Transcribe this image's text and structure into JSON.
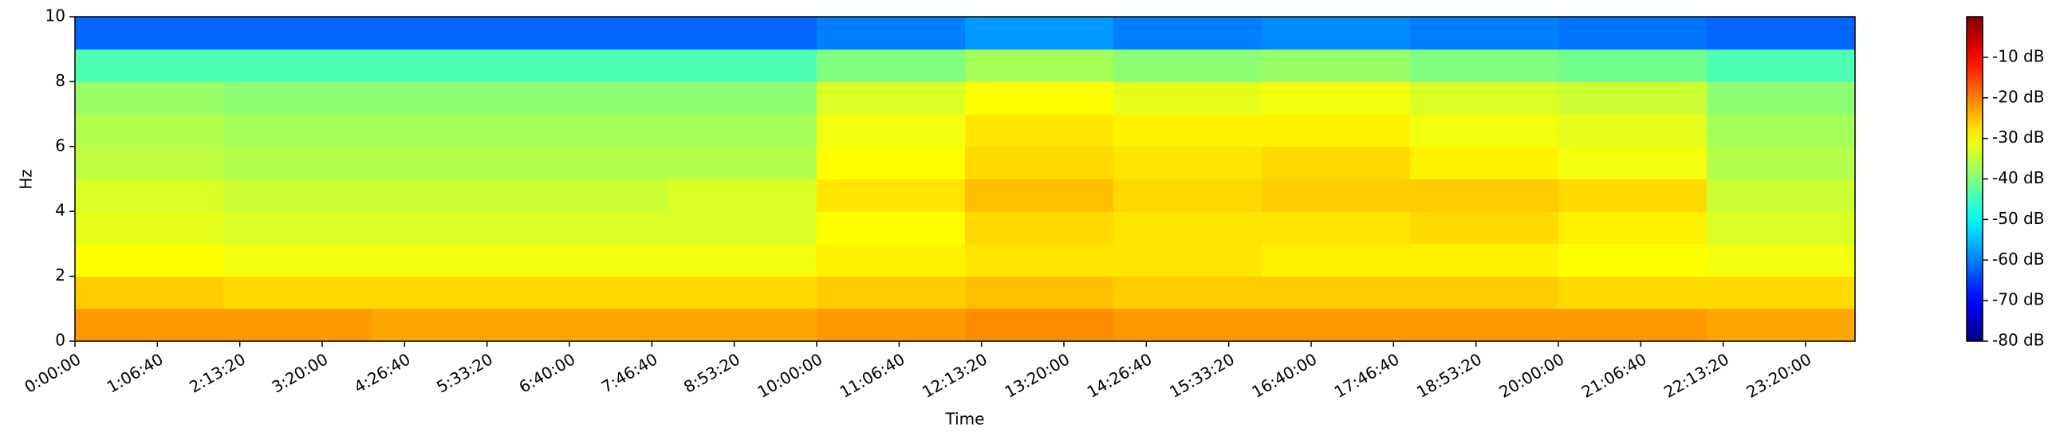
{
  "chart_data": {
    "type": "heatmap",
    "colormap": "jet",
    "xlabel": "Time",
    "ylabel": "Hz",
    "x_bins": [
      0,
      7200,
      14400,
      21600,
      28800,
      36000,
      43200,
      50400,
      57600,
      64800,
      72000,
      79200,
      86400
    ],
    "y_bins": [
      0,
      1,
      2,
      3,
      4,
      5,
      6,
      7,
      8,
      9,
      10
    ],
    "z": [
      [
        -22,
        -22,
        -23,
        -23,
        -23,
        -22,
        -21,
        -22,
        -22,
        -22,
        -22,
        -23
      ],
      [
        -26,
        -27,
        -27,
        -27,
        -27,
        -26,
        -25,
        -26,
        -26,
        -26,
        -27,
        -27
      ],
      [
        -30,
        -31,
        -31,
        -31,
        -31,
        -29,
        -28,
        -28,
        -29,
        -29,
        -30,
        -31
      ],
      [
        -32,
        -33,
        -33,
        -33,
        -33,
        -30,
        -27,
        -28,
        -28,
        -27,
        -29,
        -33
      ],
      [
        -33,
        -34,
        -34,
        -34,
        -33,
        -28,
        -25,
        -27,
        -26,
        -26,
        -27,
        -34
      ],
      [
        -35,
        -36,
        -36,
        -36,
        -36,
        -30,
        -27,
        -28,
        -27,
        -29,
        -31,
        -36
      ],
      [
        -36,
        -37,
        -37,
        -37,
        -37,
        -31,
        -28,
        -29,
        -29,
        -31,
        -32,
        -37
      ],
      [
        -38,
        -39,
        -39,
        -39,
        -39,
        -33,
        -30,
        -32,
        -31,
        -33,
        -34,
        -39
      ],
      [
        -44,
        -44,
        -44,
        -44,
        -44,
        -40,
        -37,
        -39,
        -38,
        -40,
        -41,
        -44
      ],
      [
        -62,
        -62,
        -62,
        -62,
        -62,
        -60,
        -58,
        -60,
        -59,
        -60,
        -61,
        -62
      ]
    ],
    "xlim": [
      0,
      86400
    ],
    "ylim": [
      0,
      10
    ],
    "clim": [
      -80,
      0
    ],
    "xticks": [
      {
        "value": 0,
        "label": "0:00:00"
      },
      {
        "value": 4000,
        "label": "1:06:40"
      },
      {
        "value": 8000,
        "label": "2:13:20"
      },
      {
        "value": 12000,
        "label": "3:20:00"
      },
      {
        "value": 16000,
        "label": "4:26:40"
      },
      {
        "value": 20000,
        "label": "5:33:20"
      },
      {
        "value": 24000,
        "label": "6:40:00"
      },
      {
        "value": 28000,
        "label": "7:46:40"
      },
      {
        "value": 32000,
        "label": "8:53:20"
      },
      {
        "value": 36000,
        "label": "10:00:00"
      },
      {
        "value": 40000,
        "label": "11:06:40"
      },
      {
        "value": 44000,
        "label": "12:13:20"
      },
      {
        "value": 48000,
        "label": "13:20:00"
      },
      {
        "value": 52000,
        "label": "14:26:40"
      },
      {
        "value": 56000,
        "label": "15:33:20"
      },
      {
        "value": 60000,
        "label": "16:40:00"
      },
      {
        "value": 64000,
        "label": "17:46:40"
      },
      {
        "value": 68000,
        "label": "18:53:20"
      },
      {
        "value": 72000,
        "label": "20:00:00"
      },
      {
        "value": 76000,
        "label": "21:06:40"
      },
      {
        "value": 80000,
        "label": "22:13:20"
      },
      {
        "value": 84000,
        "label": "23:20:00"
      }
    ],
    "yticks": [
      0,
      2,
      4,
      6,
      8,
      10
    ],
    "cticks": [
      {
        "value": -10,
        "label": "-10 dB"
      },
      {
        "value": -20,
        "label": "-20 dB"
      },
      {
        "value": -30,
        "label": "-30 dB"
      },
      {
        "value": -40,
        "label": "-40 dB"
      },
      {
        "value": -50,
        "label": "-50 dB"
      },
      {
        "value": -60,
        "label": "-60 dB"
      },
      {
        "value": -70,
        "label": "-70 dB"
      },
      {
        "value": -80,
        "label": "-80 dB"
      }
    ]
  }
}
